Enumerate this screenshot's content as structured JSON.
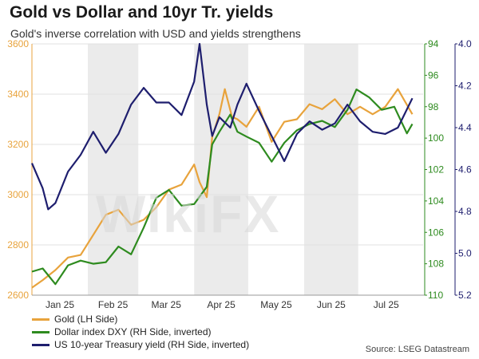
{
  "header": {
    "title": "Gold vs Dollar and 10yr Tr. yields",
    "subtitle": "Gold's inverse correlation with USD and yields strengthens"
  },
  "watermark": "WikiFX",
  "source": "Source: LSEG Datastream",
  "colors": {
    "gold": "#e8a33c",
    "dxy": "#2e8b1f",
    "yield": "#1e1e6e",
    "shade": "#ebebeb"
  },
  "chart_data": {
    "type": "line",
    "x_labels": [
      "Jan 25",
      "Feb 25",
      "Mar 25",
      "Apr 25",
      "May 25",
      "Jun 25",
      "Jul 25"
    ],
    "months": [
      "2025-01",
      "2025-02",
      "2025-03",
      "2025-04",
      "2025-05",
      "2025-06",
      "2025-07"
    ],
    "shaded_months": [
      "2025-02",
      "2025-04",
      "2025-06"
    ],
    "grid": "horizontal",
    "legend_position": "bottom-left",
    "axes": {
      "left": {
        "min": 2600,
        "max": 3600,
        "ticks": [
          2600,
          2800,
          3000,
          3200,
          3400,
          3600
        ]
      },
      "right_dxy": {
        "min": 94,
        "max": 110,
        "inverted": true,
        "ticks": [
          94,
          96,
          98,
          100,
          102,
          104,
          106,
          108,
          110
        ]
      },
      "right_yield": {
        "min": 4.0,
        "max": 5.2,
        "inverted": true,
        "ticks": [
          "4.0",
          "4.2",
          "4.4",
          "4.6",
          "4.8",
          "5.0",
          "5.2"
        ]
      }
    },
    "series": [
      {
        "name": "Gold (LH Side)",
        "axis": "left",
        "x": [
          "2025-01-01",
          "2025-01-07",
          "2025-01-14",
          "2025-01-21",
          "2025-01-28",
          "2025-02-04",
          "2025-02-11",
          "2025-02-18",
          "2025-02-25",
          "2025-03-04",
          "2025-03-11",
          "2025-03-18",
          "2025-03-25",
          "2025-04-01",
          "2025-04-04",
          "2025-04-08",
          "2025-04-11",
          "2025-04-15",
          "2025-04-18",
          "2025-04-22",
          "2025-04-25",
          "2025-04-30",
          "2025-05-07",
          "2025-05-14",
          "2025-05-21",
          "2025-05-28",
          "2025-06-04",
          "2025-06-11",
          "2025-06-18",
          "2025-06-25",
          "2025-07-02",
          "2025-07-09",
          "2025-07-16",
          "2025-07-23",
          "2025-07-31"
        ],
        "values": [
          2630,
          2660,
          2700,
          2750,
          2760,
          2840,
          2920,
          2940,
          2880,
          2900,
          2950,
          3020,
          3040,
          3120,
          3050,
          2990,
          3230,
          3320,
          3420,
          3310,
          3300,
          3270,
          3350,
          3210,
          3290,
          3300,
          3360,
          3340,
          3380,
          3320,
          3350,
          3320,
          3350,
          3420,
          3320
        ]
      },
      {
        "name": "Dollar index DXY (RH Side, inverted)",
        "axis": "right_dxy",
        "x": [
          "2025-01-01",
          "2025-01-07",
          "2025-01-14",
          "2025-01-21",
          "2025-01-28",
          "2025-02-04",
          "2025-02-11",
          "2025-02-18",
          "2025-02-25",
          "2025-03-04",
          "2025-03-11",
          "2025-03-18",
          "2025-03-25",
          "2025-04-01",
          "2025-04-08",
          "2025-04-11",
          "2025-04-15",
          "2025-04-21",
          "2025-04-25",
          "2025-04-30",
          "2025-05-07",
          "2025-05-14",
          "2025-05-21",
          "2025-05-28",
          "2025-06-04",
          "2025-06-11",
          "2025-06-18",
          "2025-06-25",
          "2025-06-30",
          "2025-07-07",
          "2025-07-14",
          "2025-07-21",
          "2025-07-28",
          "2025-07-31"
        ],
        "values": [
          108.5,
          108.3,
          109.3,
          108.1,
          107.8,
          108.0,
          107.9,
          106.9,
          107.4,
          105.7,
          103.8,
          103.3,
          104.3,
          104.2,
          103.1,
          100.4,
          99.6,
          98.5,
          99.6,
          99.9,
          100.3,
          101.5,
          100.3,
          99.5,
          99.1,
          98.9,
          99.3,
          98.2,
          96.9,
          97.4,
          98.2,
          98.0,
          99.7,
          99.1
        ]
      },
      {
        "name": "US 10-year Treasury yield (RH Side, inverted)",
        "axis": "right_yield",
        "x": [
          "2025-01-01",
          "2025-01-07",
          "2025-01-10",
          "2025-01-14",
          "2025-01-21",
          "2025-01-28",
          "2025-02-04",
          "2025-02-11",
          "2025-02-18",
          "2025-02-25",
          "2025-03-04",
          "2025-03-11",
          "2025-03-18",
          "2025-03-25",
          "2025-04-01",
          "2025-04-04",
          "2025-04-08",
          "2025-04-11",
          "2025-04-15",
          "2025-04-21",
          "2025-04-25",
          "2025-04-30",
          "2025-05-07",
          "2025-05-14",
          "2025-05-21",
          "2025-05-28",
          "2025-06-04",
          "2025-06-11",
          "2025-06-18",
          "2025-06-25",
          "2025-07-02",
          "2025-07-09",
          "2025-07-16",
          "2025-07-23",
          "2025-07-31"
        ],
        "values": [
          4.57,
          4.69,
          4.79,
          4.76,
          4.61,
          4.53,
          4.42,
          4.52,
          4.43,
          4.29,
          4.21,
          4.28,
          4.28,
          4.34,
          4.18,
          4.0,
          4.29,
          4.44,
          4.35,
          4.4,
          4.29,
          4.19,
          4.32,
          4.44,
          4.56,
          4.43,
          4.37,
          4.41,
          4.38,
          4.29,
          4.37,
          4.42,
          4.43,
          4.4,
          4.26
        ]
      }
    ]
  }
}
